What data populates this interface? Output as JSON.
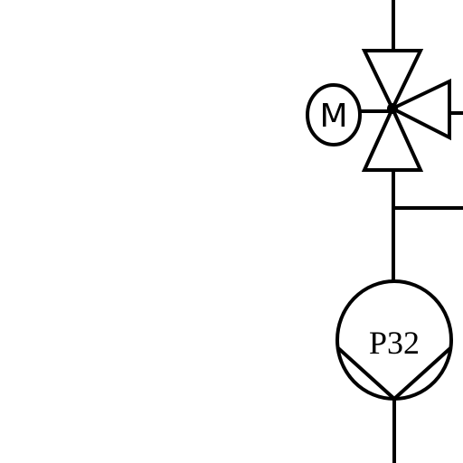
{
  "motor": {
    "label": "M"
  },
  "pump": {
    "label": "P32"
  },
  "colors": {
    "line": "#000000",
    "background": "#ffffff"
  }
}
